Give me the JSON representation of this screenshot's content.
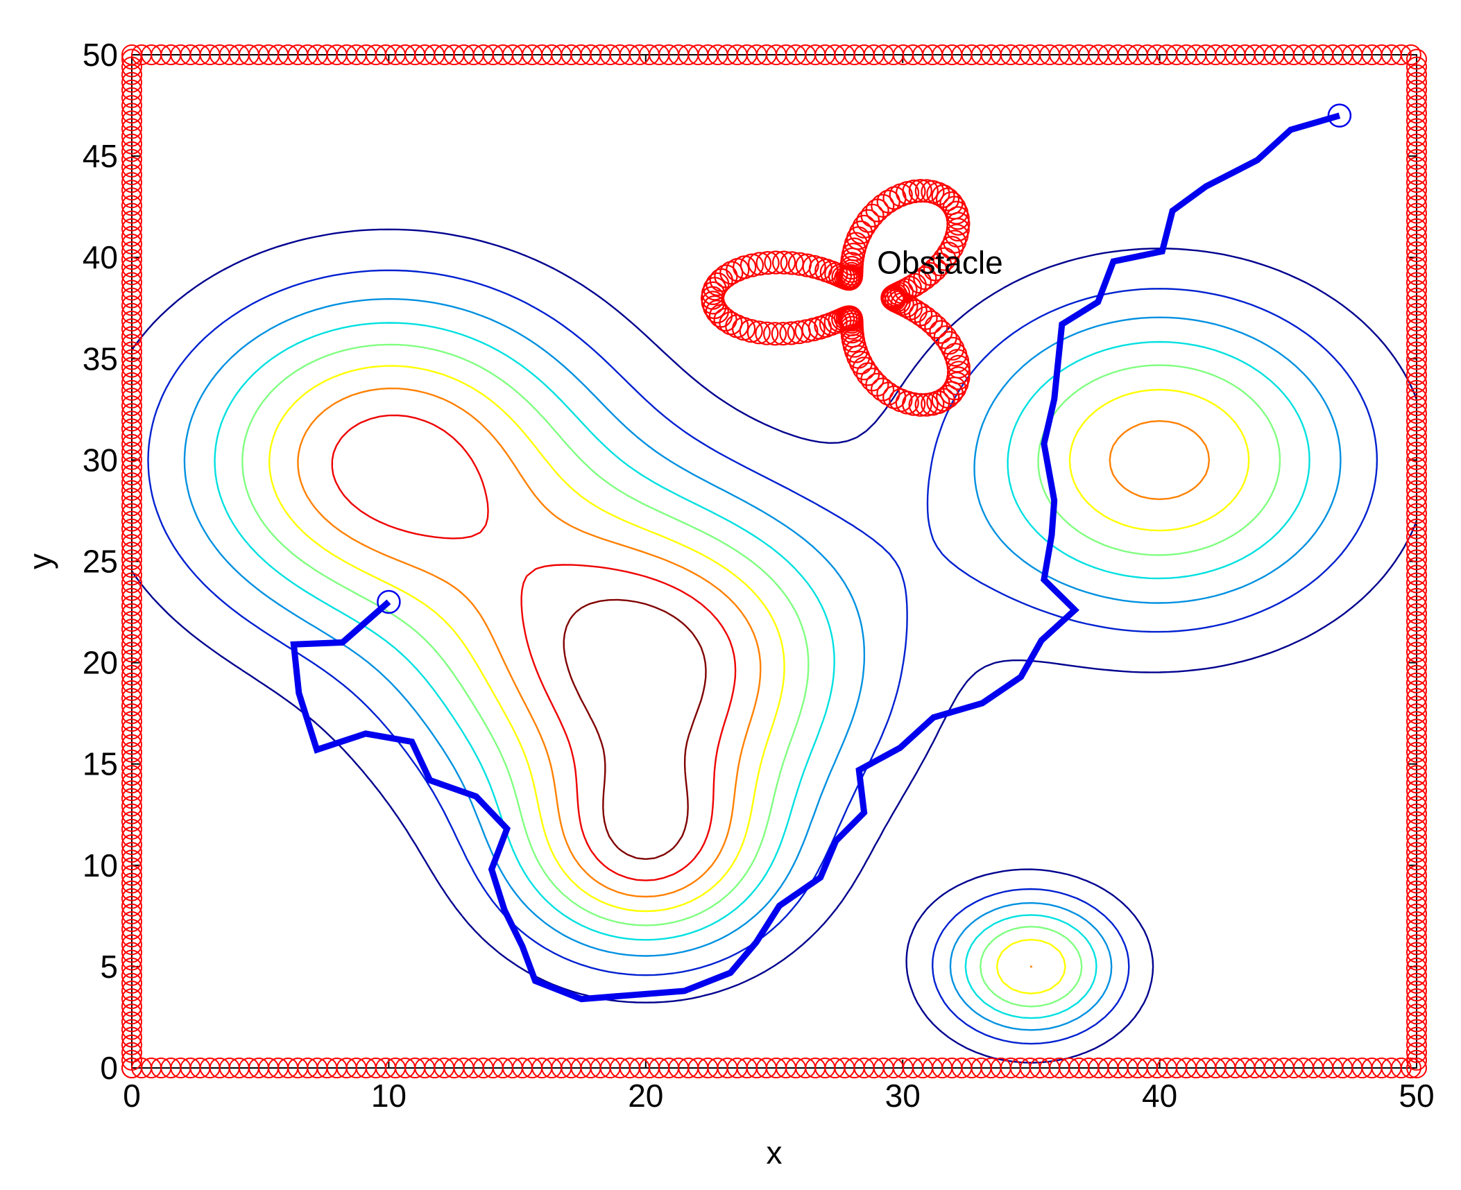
{
  "chart_data": {
    "type": "contour",
    "title": "",
    "xlabel": "x",
    "ylabel": "y",
    "xlim": [
      0,
      50
    ],
    "ylim": [
      0,
      50
    ],
    "xticks": [
      0,
      10,
      20,
      30,
      40,
      50
    ],
    "yticks": [
      0,
      5,
      10,
      15,
      20,
      25,
      30,
      35,
      40,
      45,
      50
    ],
    "grid": false,
    "annotation": {
      "text": "Obstacle",
      "x": 29,
      "y": 39.2
    },
    "colors": {
      "path": "#0000ee",
      "obstacle": "#ff0000",
      "contour_levels": [
        "#00008f",
        "#0020d0",
        "#0090e0",
        "#00e0e0",
        "#80ff80",
        "#ffff00",
        "#ff8000",
        "#ee0000",
        "#800000"
      ]
    },
    "contour_peaks": [
      {
        "x": 10,
        "y": 30,
        "value": 8
      },
      {
        "x": 20,
        "y": 20,
        "value": 9
      },
      {
        "x": 20,
        "y": 11,
        "value": 8
      },
      {
        "x": 40,
        "y": 30,
        "value": 7
      },
      {
        "x": 35,
        "y": 5,
        "value": 7
      }
    ],
    "path": {
      "start": [
        10,
        23
      ],
      "goal": [
        47,
        47
      ],
      "points": [
        [
          10,
          23
        ],
        [
          8.2,
          21
        ],
        [
          6.3,
          20.9
        ],
        [
          6.5,
          18.5
        ],
        [
          7.2,
          15.7
        ],
        [
          9.1,
          16.5
        ],
        [
          10.9,
          16.1
        ],
        [
          11.6,
          14.2
        ],
        [
          13.4,
          13.4
        ],
        [
          14.6,
          11.8
        ],
        [
          14,
          9.8
        ],
        [
          14.5,
          7.8
        ],
        [
          15.2,
          6
        ],
        [
          15.7,
          4.3
        ],
        [
          17.5,
          3.4
        ],
        [
          19.5,
          3.6
        ],
        [
          21.5,
          3.8
        ],
        [
          23.3,
          4.7
        ],
        [
          24.3,
          6.2
        ],
        [
          25.2,
          8
        ],
        [
          26.8,
          9.4
        ],
        [
          27.4,
          11.2
        ],
        [
          28.5,
          12.6
        ],
        [
          28.3,
          14.7
        ],
        [
          29.9,
          15.8
        ],
        [
          31.2,
          17.3
        ],
        [
          33.1,
          18
        ],
        [
          34.6,
          19.3
        ],
        [
          35.4,
          21.1
        ],
        [
          36.7,
          22.6
        ],
        [
          35.5,
          24.1
        ],
        [
          35.8,
          26.3
        ],
        [
          35.9,
          28
        ],
        [
          35.5,
          30.8
        ],
        [
          35.9,
          33
        ],
        [
          36.2,
          36.7
        ],
        [
          37.6,
          37.8
        ],
        [
          38.2,
          39.8
        ],
        [
          40.1,
          40.3
        ],
        [
          40.5,
          42.3
        ],
        [
          41.8,
          43.5
        ],
        [
          43.8,
          44.8
        ],
        [
          45.1,
          46.3
        ],
        [
          47,
          47
        ]
      ]
    },
    "obstacle": {
      "center": [
        28.5,
        38
      ],
      "boundary": "circular markers"
    },
    "border": {
      "xlim": [
        0,
        50
      ],
      "ylim": [
        0,
        50
      ],
      "marker": "circle"
    }
  }
}
